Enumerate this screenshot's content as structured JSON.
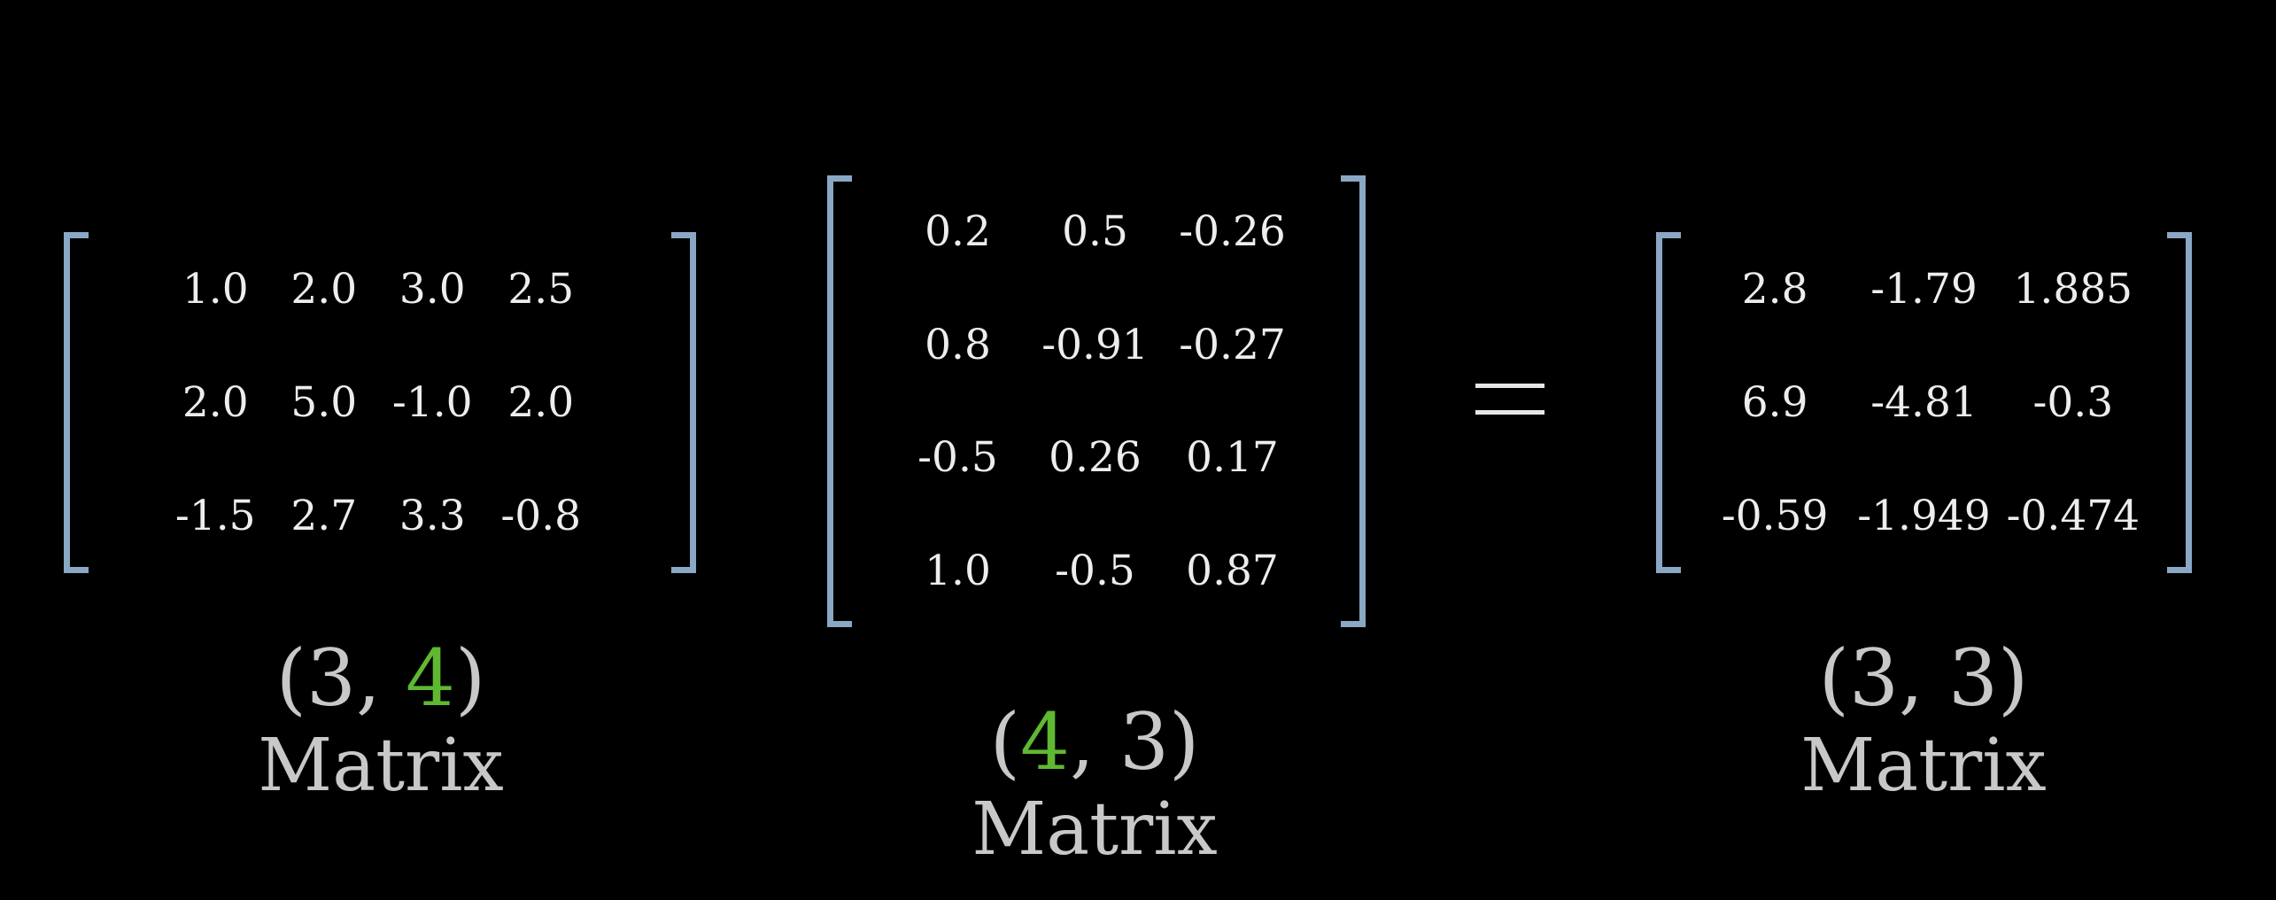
{
  "colors": {
    "bracket": "#8aa7c4",
    "highlight": "#5fb832",
    "text": "#ececec",
    "caption": "#c8c8c8",
    "background": "#000000"
  },
  "matrix_a": {
    "rows": [
      [
        "1.0",
        "2.0",
        "3.0",
        "2.5"
      ],
      [
        "2.0",
        "5.0",
        "-1.0",
        "2.0"
      ],
      [
        "-1.5",
        "2.7",
        "3.3",
        "-0.8"
      ]
    ],
    "shape": {
      "open": "(",
      "first": "3",
      "sep": ", ",
      "second": "4",
      "close": ")"
    },
    "highlight": "second",
    "label": "Matrix"
  },
  "matrix_b": {
    "rows": [
      [
        "0.2",
        "0.5",
        "-0.26"
      ],
      [
        "0.8",
        "-0.91",
        "-0.27"
      ],
      [
        "-0.5",
        "0.26",
        "0.17"
      ],
      [
        "1.0",
        "-0.5",
        "0.87"
      ]
    ],
    "shape": {
      "open": "(",
      "first": "4",
      "sep": ", ",
      "second": "3",
      "close": ")"
    },
    "highlight": "first",
    "label": "Matrix"
  },
  "matrix_c": {
    "rows": [
      [
        "2.8",
        "-1.79",
        "1.885"
      ],
      [
        "6.9",
        "-4.81",
        "-0.3"
      ],
      [
        "-0.59",
        "-1.949",
        "-0.474"
      ]
    ],
    "shape": {
      "open": "(",
      "first": "3",
      "sep": ", ",
      "second": "3",
      "close": ")"
    },
    "highlight": "none",
    "label": "Matrix"
  },
  "operator": {
    "symbol": "equals"
  }
}
